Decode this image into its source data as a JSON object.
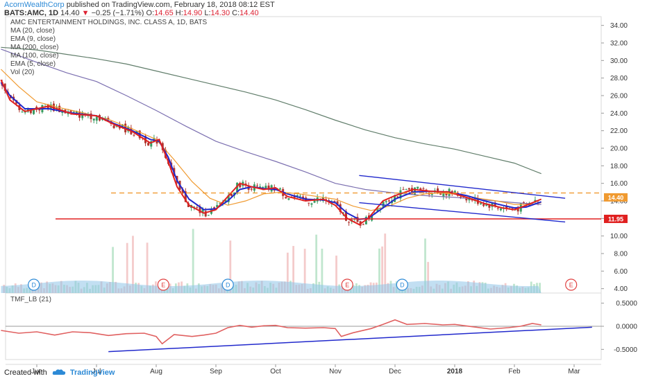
{
  "header": {
    "author": "AcornWealthCorp",
    "published": "published on TradingView.com, February 18, 2018 08:12 EST",
    "symbol": "BATS:AMC, 1D",
    "last": "14.40",
    "change": "−0.25 (−1.71%)",
    "open_label": "O:",
    "open": "14.65",
    "high_label": "H:",
    "high": "14.90",
    "low_label": "L:",
    "low": "14.30",
    "close_label": "C:",
    "close": "14.40"
  },
  "legend": [
    "AMC ENTERTAINMENT HOLDINGS, INC. CLASS A, 1D, BATS",
    "MA (20, close)",
    "EMA (9, close)",
    "MA (200, close)",
    "MA (100, close)",
    "EMA (5, close)",
    "Vol (20)"
  ],
  "indicator_label": "TMF_LB (21)",
  "footer": {
    "created_with": "Created with",
    "brand": "TradingView"
  },
  "chart_data": [
    {
      "type": "line",
      "title": "AMC ENTERTAINMENT HOLDINGS, INC. CLASS A, 1D, BATS",
      "ylim": [
        3.5,
        35
      ],
      "y_ticks": [
        "34.00",
        "32.00",
        "30.00",
        "28.00",
        "26.00",
        "24.00",
        "22.00",
        "20.00",
        "18.00",
        "16.00",
        "14.00",
        "12.00",
        "10.00",
        "8.00",
        "6.00",
        "4.00"
      ],
      "x_labels": [
        {
          "label": "Jun",
          "month": 0.0
        },
        {
          "label": "Jul",
          "month": 1.0
        },
        {
          "label": "Aug",
          "month": 2.0
        },
        {
          "label": "Sep",
          "month": 3.0
        },
        {
          "label": "Oct",
          "month": 4.0
        },
        {
          "label": "Nov",
          "month": 5.0
        },
        {
          "label": "Dec",
          "month": 6.0
        },
        {
          "label": "2018",
          "month": 7.0
        },
        {
          "label": "Feb",
          "month": 8.0
        },
        {
          "label": "Mar",
          "month": 9.0
        }
      ],
      "series": [
        {
          "name": "EMA (5, close)",
          "color": "#e02020",
          "points": [
            [
              -0.6,
              27.8
            ],
            [
              -0.45,
              25.5
            ],
            [
              -0.2,
              24.2
            ],
            [
              0.2,
              24.8
            ],
            [
              0.6,
              23.9
            ],
            [
              1.0,
              23.7
            ],
            [
              1.3,
              22.7
            ],
            [
              1.6,
              21.9
            ],
            [
              1.9,
              20.6
            ],
            [
              2.05,
              21.0
            ],
            [
              2.2,
              18.5
            ],
            [
              2.35,
              15.6
            ],
            [
              2.55,
              13.5
            ],
            [
              2.8,
              12.6
            ],
            [
              3.0,
              13.0
            ],
            [
              3.2,
              14.5
            ],
            [
              3.4,
              16.0
            ],
            [
              3.6,
              15.6
            ],
            [
              3.8,
              15.3
            ],
            [
              4.0,
              15.5
            ],
            [
              4.2,
              14.5
            ],
            [
              4.5,
              14.0
            ],
            [
              4.8,
              14.2
            ],
            [
              5.0,
              13.5
            ],
            [
              5.2,
              12.0
            ],
            [
              5.4,
              11.3
            ],
            [
              5.55,
              12.0
            ],
            [
              5.8,
              14.0
            ],
            [
              6.0,
              14.6
            ],
            [
              6.3,
              15.3
            ],
            [
              6.6,
              15.1
            ],
            [
              6.9,
              15.0
            ],
            [
              7.2,
              14.4
            ],
            [
              7.5,
              13.7
            ],
            [
              7.8,
              13.2
            ],
            [
              8.0,
              13.0
            ],
            [
              8.2,
              13.5
            ],
            [
              8.45,
              14.2
            ]
          ]
        },
        {
          "name": "EMA (9, close)",
          "color": "#2028cc",
          "points": [
            [
              -0.6,
              27.5
            ],
            [
              -0.45,
              26.0
            ],
            [
              -0.2,
              24.5
            ],
            [
              0.2,
              24.5
            ],
            [
              0.6,
              24.0
            ],
            [
              1.0,
              23.7
            ],
            [
              1.3,
              22.8
            ],
            [
              1.6,
              22.0
            ],
            [
              1.9,
              21.0
            ],
            [
              2.05,
              20.8
            ],
            [
              2.2,
              19.0
            ],
            [
              2.35,
              16.3
            ],
            [
              2.55,
              14.2
            ],
            [
              2.8,
              13.0
            ],
            [
              3.0,
              13.1
            ],
            [
              3.2,
              14.0
            ],
            [
              3.4,
              15.3
            ],
            [
              3.6,
              15.6
            ],
            [
              3.8,
              15.4
            ],
            [
              4.0,
              15.3
            ],
            [
              4.2,
              14.8
            ],
            [
              4.5,
              14.2
            ],
            [
              4.8,
              14.1
            ],
            [
              5.0,
              13.8
            ],
            [
              5.2,
              12.6
            ],
            [
              5.4,
              11.9
            ],
            [
              5.55,
              12.0
            ],
            [
              5.8,
              13.2
            ],
            [
              6.0,
              14.2
            ],
            [
              6.3,
              15.0
            ],
            [
              6.6,
              15.1
            ],
            [
              6.9,
              15.0
            ],
            [
              7.2,
              14.6
            ],
            [
              7.5,
              14.0
            ],
            [
              7.8,
              13.5
            ],
            [
              8.0,
              13.2
            ],
            [
              8.2,
              13.3
            ],
            [
              8.45,
              13.9
            ]
          ]
        },
        {
          "name": "MA (20, close)",
          "color": "#f09a30",
          "points": [
            [
              -0.6,
              29.0
            ],
            [
              -0.3,
              27.0
            ],
            [
              0.0,
              25.3
            ],
            [
              0.4,
              24.6
            ],
            [
              0.8,
              24.0
            ],
            [
              1.2,
              23.3
            ],
            [
              1.6,
              22.2
            ],
            [
              2.0,
              21.0
            ],
            [
              2.3,
              18.7
            ],
            [
              2.6,
              16.2
            ],
            [
              2.9,
              14.3
            ],
            [
              3.2,
              13.5
            ],
            [
              3.5,
              14.0
            ],
            [
              3.8,
              14.8
            ],
            [
              4.1,
              15.0
            ],
            [
              4.4,
              14.8
            ],
            [
              4.7,
              14.5
            ],
            [
              5.0,
              14.2
            ],
            [
              5.3,
              13.4
            ],
            [
              5.6,
              12.9
            ],
            [
              5.9,
              13.4
            ],
            [
              6.2,
              14.3
            ],
            [
              6.5,
              14.8
            ],
            [
              6.8,
              14.9
            ],
            [
              7.1,
              14.7
            ],
            [
              7.4,
              14.3
            ],
            [
              7.7,
              14.0
            ],
            [
              8.0,
              13.6
            ],
            [
              8.3,
              13.6
            ],
            [
              8.45,
              13.8
            ]
          ]
        },
        {
          "name": "MA (100, close)",
          "color": "#7b6fb0",
          "points": [
            [
              -0.6,
              31.3
            ],
            [
              0.0,
              29.8
            ],
            [
              0.5,
              28.6
            ],
            [
              1.0,
              27.6
            ],
            [
              1.5,
              26.0
            ],
            [
              2.0,
              24.3
            ],
            [
              2.5,
              22.5
            ],
            [
              3.0,
              20.8
            ],
            [
              3.5,
              19.6
            ],
            [
              4.0,
              18.5
            ],
            [
              4.5,
              17.3
            ],
            [
              5.0,
              16.0
            ],
            [
              5.5,
              15.3
            ],
            [
              6.0,
              14.9
            ],
            [
              6.5,
              14.6
            ],
            [
              7.0,
              14.4
            ],
            [
              7.5,
              14.1
            ],
            [
              8.0,
              13.8
            ],
            [
              8.45,
              13.6
            ]
          ]
        },
        {
          "name": "MA (200, close)",
          "color": "#607d6a",
          "points": [
            [
              -0.6,
              31.5
            ],
            [
              0.0,
              31.2
            ],
            [
              0.5,
              30.7
            ],
            [
              1.0,
              30.2
            ],
            [
              1.5,
              29.6
            ],
            [
              2.0,
              28.8
            ],
            [
              2.5,
              28.0
            ],
            [
              3.0,
              27.2
            ],
            [
              3.5,
              26.4
            ],
            [
              4.0,
              25.5
            ],
            [
              4.5,
              24.4
            ],
            [
              5.0,
              23.2
            ],
            [
              5.5,
              22.1
            ],
            [
              6.0,
              21.2
            ],
            [
              6.5,
              20.5
            ],
            [
              7.0,
              19.9
            ],
            [
              7.5,
              19.1
            ],
            [
              8.0,
              18.3
            ],
            [
              8.45,
              17.1
            ]
          ]
        }
      ],
      "annotations": {
        "support_line": 11.95,
        "dashed_resistance": 14.9,
        "price_label": "14.40",
        "support_label": "11.95",
        "channel_upper": [
          [
            5.4,
            16.9
          ],
          [
            8.85,
            14.3
          ]
        ],
        "channel_lower": [
          [
            5.4,
            13.8
          ],
          [
            8.85,
            11.6
          ]
        ]
      },
      "events": [
        {
          "month": -0.05,
          "label": "D"
        },
        {
          "month": 2.12,
          "label": "E"
        },
        {
          "month": 3.2,
          "label": "D"
        },
        {
          "month": 5.2,
          "label": "E"
        },
        {
          "month": 6.12,
          "label": "D"
        },
        {
          "month": 8.95,
          "label": "E"
        }
      ]
    },
    {
      "type": "line",
      "title": "TMF_LB (21)",
      "ylim": [
        -0.72,
        0.72
      ],
      "y_ticks": [
        "0.5000",
        "0.0000",
        "-0.5000"
      ],
      "series": [
        {
          "name": "TMF_LB (21)",
          "color": "#e06060",
          "points": [
            [
              -0.6,
              -0.09
            ],
            [
              -0.3,
              -0.15
            ],
            [
              0.0,
              -0.12
            ],
            [
              0.3,
              -0.19
            ],
            [
              0.6,
              -0.12
            ],
            [
              0.9,
              -0.14
            ],
            [
              1.2,
              -0.2
            ],
            [
              1.5,
              -0.16
            ],
            [
              1.8,
              -0.15
            ],
            [
              2.0,
              -0.22
            ],
            [
              2.1,
              -0.38
            ],
            [
              2.3,
              -0.18
            ],
            [
              2.6,
              -0.22
            ],
            [
              2.8,
              -0.19
            ],
            [
              3.0,
              -0.15
            ],
            [
              3.2,
              -0.03
            ],
            [
              3.4,
              0.02
            ],
            [
              3.6,
              -0.02
            ],
            [
              3.8,
              0.01
            ],
            [
              4.0,
              0.02
            ],
            [
              4.2,
              -0.03
            ],
            [
              4.5,
              -0.04
            ],
            [
              4.8,
              -0.03
            ],
            [
              5.0,
              -0.05
            ],
            [
              5.1,
              -0.22
            ],
            [
              5.3,
              -0.14
            ],
            [
              5.6,
              -0.05
            ],
            [
              5.8,
              0.04
            ],
            [
              6.0,
              0.14
            ],
            [
              6.2,
              0.04
            ],
            [
              6.5,
              0.06
            ],
            [
              6.8,
              0.03
            ],
            [
              7.0,
              0.04
            ],
            [
              7.3,
              -0.01
            ],
            [
              7.6,
              -0.06
            ],
            [
              7.9,
              -0.03
            ],
            [
              8.1,
              0.0
            ],
            [
              8.3,
              0.06
            ],
            [
              8.45,
              0.03
            ]
          ]
        }
      ],
      "trend_line": [
        [
          1.2,
          -0.55
        ],
        [
          9.3,
          -0.02
        ]
      ]
    }
  ]
}
